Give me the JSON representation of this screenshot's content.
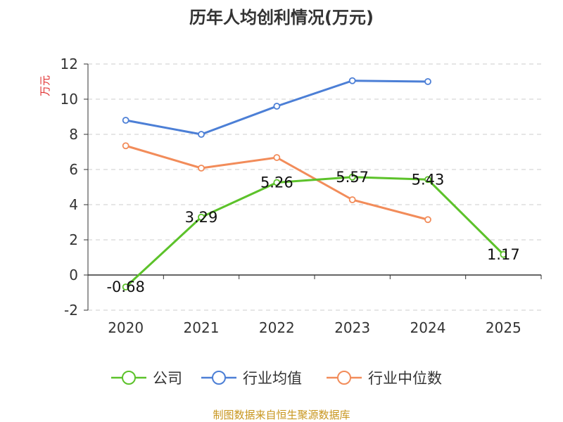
{
  "chart_data": {
    "type": "line",
    "title": "历年人均创利情况(万元)",
    "ylabel": "万元",
    "xlabel": "",
    "categories": [
      "2020",
      "2021",
      "2022",
      "2023",
      "2024",
      "2025"
    ],
    "ylim": [
      -2,
      12
    ],
    "yticks": [
      -2,
      0,
      2,
      4,
      6,
      8,
      10,
      12
    ],
    "grid": true,
    "legend_position": "bottom",
    "series": [
      {
        "name": "公司",
        "color": "#5cc22a",
        "values": [
          -0.68,
          3.29,
          5.26,
          5.57,
          5.43,
          1.17
        ],
        "labels": [
          "-0.68",
          "3.29",
          "5.26",
          "5.57",
          "5.43",
          "1.17"
        ]
      },
      {
        "name": "行业均值",
        "color": "#4c7fd6",
        "values": [
          8.8,
          8.0,
          9.6,
          11.05,
          11.0,
          null
        ]
      },
      {
        "name": "行业中位数",
        "color": "#f28c5a",
        "values": [
          7.35,
          6.08,
          6.68,
          4.28,
          3.15,
          null
        ]
      }
    ]
  },
  "source": "制图数据来自恒生聚源数据库"
}
